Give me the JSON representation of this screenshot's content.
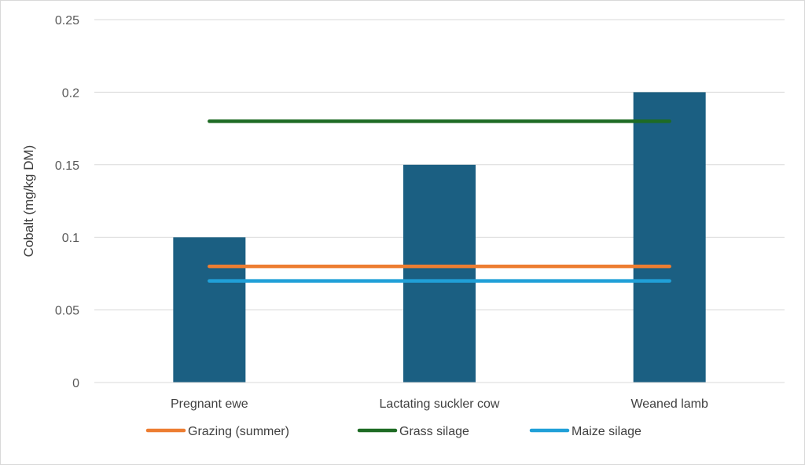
{
  "chart_data": {
    "type": "bar",
    "title": "",
    "xlabel": "",
    "ylabel": "Cobalt (mg/kg DM)",
    "ylim": [
      0,
      0.25
    ],
    "yticks": [
      "0",
      "0.05",
      "0.1",
      "0.15",
      "0.2",
      "0.25"
    ],
    "categories": [
      "Pregnant ewe",
      "Lactating suckler cow",
      "Weaned lamb"
    ],
    "values": [
      0.1,
      0.15,
      0.2
    ],
    "bar_color": "#1b5f82",
    "lines": [
      {
        "name": "Grazing (summer)",
        "value": 0.08,
        "color": "#ed7d31"
      },
      {
        "name": "Grass silage",
        "value": 0.18,
        "color": "#1e6b24"
      },
      {
        "name": "Maize silage",
        "value": 0.07,
        "color": "#20a0d8"
      }
    ],
    "legend_position": "bottom",
    "grid": true
  }
}
